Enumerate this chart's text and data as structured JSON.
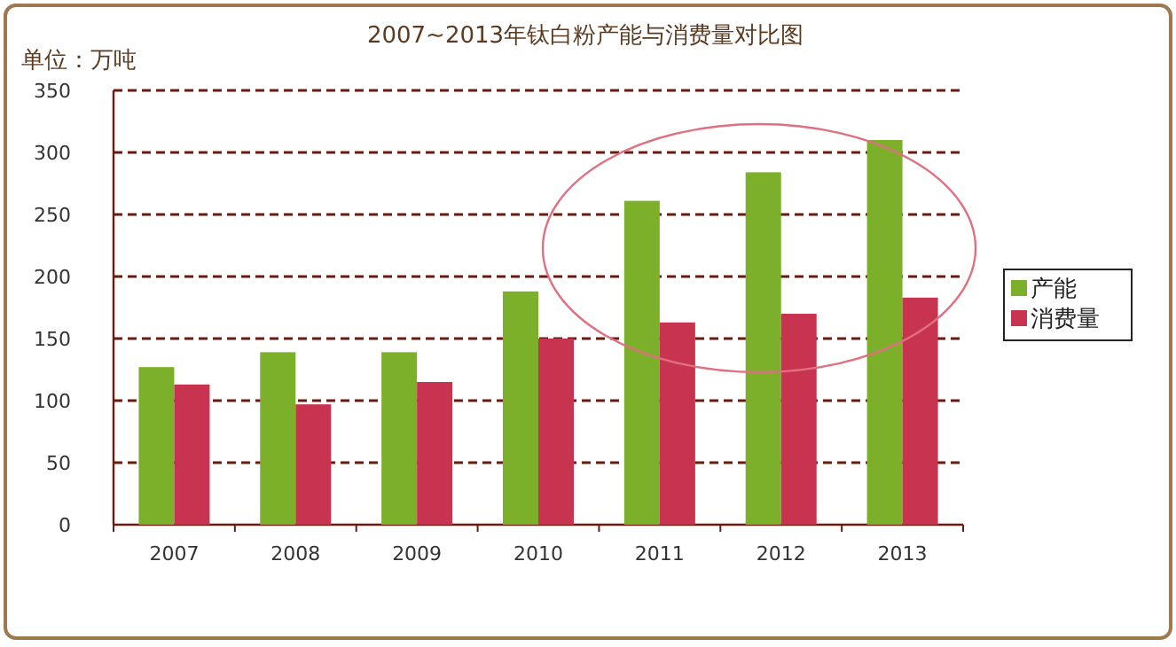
{
  "chart_data": {
    "type": "bar",
    "title": "2007~2013年钛白粉产能与消费量对比图",
    "ylabel": "单位：万吨",
    "categories": [
      "2007",
      "2008",
      "2009",
      "2010",
      "2011",
      "2012",
      "2013"
    ],
    "series": [
      {
        "name": "产能",
        "color": "#7db02a",
        "values": [
          127,
          139,
          139,
          188,
          261,
          284,
          310
        ]
      },
      {
        "name": "消费量",
        "color": "#c8334f",
        "values": [
          113,
          97,
          115,
          150,
          163,
          170,
          183
        ]
      }
    ],
    "ylim": [
      0,
      350
    ],
    "yticks": [
      0,
      50,
      100,
      150,
      200,
      250,
      300,
      350
    ],
    "grid": "y",
    "legend": "right"
  }
}
